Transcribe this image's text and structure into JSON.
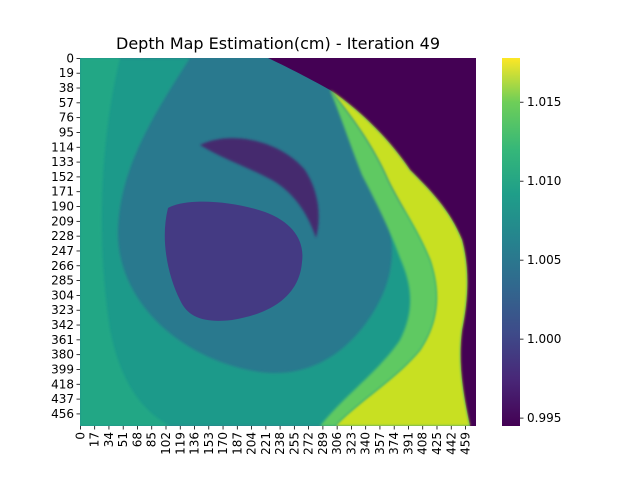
{
  "chart_data": {
    "type": "heatmap",
    "title": "Depth Map Estimation(cm) - Iteration 49",
    "xlabel": "",
    "ylabel": "",
    "colormap": "viridis",
    "grid": false,
    "legend": "colorbar-right",
    "x_ticks": [
      "0",
      "17",
      "34",
      "51",
      "68",
      "85",
      "102",
      "119",
      "136",
      "153",
      "170",
      "187",
      "204",
      "221",
      "238",
      "255",
      "272",
      "289",
      "306",
      "323",
      "340",
      "357",
      "374",
      "391",
      "408",
      "425",
      "442",
      "459"
    ],
    "y_ticks": [
      "0",
      "19",
      "38",
      "57",
      "76",
      "95",
      "114",
      "133",
      "152",
      "171",
      "190",
      "209",
      "228",
      "247",
      "266",
      "285",
      "304",
      "323",
      "342",
      "361",
      "380",
      "399",
      "418",
      "437",
      "456"
    ],
    "x_range": [
      0,
      472
    ],
    "y_range": [
      0,
      472
    ],
    "colorbar": {
      "vmin": 0.9945,
      "vmax": 1.0178,
      "ticks": [
        0.995,
        1.0,
        1.005,
        1.01,
        1.015
      ],
      "tick_labels": [
        "0.995",
        "1.000",
        "1.005",
        "1.010",
        "1.015"
      ]
    },
    "regions": [
      {
        "name": "background",
        "value": 1.0065
      },
      {
        "name": "outer-ring",
        "value": 1.009
      },
      {
        "name": "central-depression",
        "value": 0.9975
      },
      {
        "name": "upper-crescent",
        "value": 0.9965
      },
      {
        "name": "upper-right-corner",
        "value": 0.9945
      },
      {
        "name": "bright-rim",
        "value": 1.016
      }
    ]
  }
}
